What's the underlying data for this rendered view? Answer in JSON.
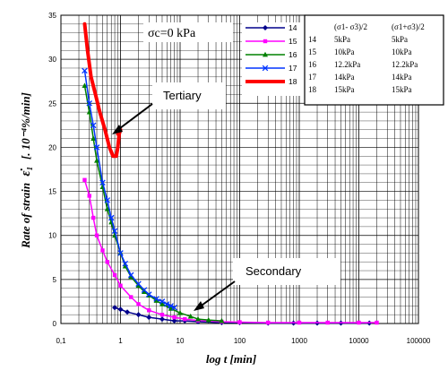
{
  "chart_data": {
    "type": "scatter",
    "xscale": "log",
    "xlim": [
      0.1,
      100000
    ],
    "ylim": [
      0,
      35
    ],
    "xlabel": "log t [min]",
    "ylabel_prefix": "Rate of strain",
    "ylabel_symbol": "ε̇₁",
    "ylabel_unit": "[. 10⁻⁴%/min]",
    "x_ticks": [
      "0,1",
      "1",
      "10",
      "100",
      "1000",
      "10000",
      "100000"
    ],
    "y_ticks": [
      "0",
      "5",
      "10",
      "15",
      "20",
      "25",
      "30",
      "35"
    ],
    "condition_label": "σc=0 kPa",
    "annotations": [
      {
        "text": "Tertiary"
      },
      {
        "text": "Secondary"
      }
    ],
    "series": [
      {
        "name": "14",
        "color": "#00008b",
        "marker": "diamond",
        "x": [
          0.8,
          1.0,
          1.3,
          2,
          3,
          5,
          8,
          12,
          20,
          50,
          100,
          300,
          800,
          2000,
          5000,
          15000
        ],
        "y": [
          1.8,
          1.6,
          1.3,
          1.0,
          0.7,
          0.5,
          0.3,
          0.3,
          0.2,
          0.1,
          0.1,
          0.05,
          0.05,
          0.05,
          0.05,
          0.05
        ]
      },
      {
        "name": "15",
        "color": "#ff00ff",
        "marker": "square",
        "x": [
          0.25,
          0.3,
          0.35,
          0.4,
          0.5,
          0.6,
          0.8,
          1.0,
          1.5,
          2,
          3,
          5,
          8,
          12,
          20,
          50,
          100,
          300,
          1000,
          3000,
          10000,
          20000
        ],
        "y": [
          16.3,
          14.5,
          12.0,
          10.0,
          8.3,
          7.0,
          5.5,
          4.3,
          3.0,
          2.2,
          1.5,
          1.0,
          0.7,
          0.5,
          0.35,
          0.2,
          0.15,
          0.1,
          0.1,
          0.1,
          0.1,
          0.1
        ]
      },
      {
        "name": "16",
        "color": "#008000",
        "marker": "triangle",
        "x": [
          0.25,
          0.3,
          0.35,
          0.4,
          0.5,
          0.6,
          0.7,
          0.8,
          1.0,
          1.2,
          1.5,
          2,
          2.5,
          3,
          4,
          5,
          7,
          10,
          15,
          20,
          30,
          50
        ],
        "y": [
          27.0,
          24.0,
          21.0,
          18.5,
          15.5,
          13.0,
          11.5,
          10.0,
          8.0,
          6.5,
          5.3,
          4.3,
          3.6,
          3.2,
          2.6,
          2.2,
          1.7,
          1.2,
          0.8,
          0.5,
          0.4,
          0.3
        ]
      },
      {
        "name": "17",
        "color": "#0033ff",
        "marker": "x",
        "x": [
          0.25,
          0.3,
          0.35,
          0.4,
          0.5,
          0.6,
          0.7,
          0.8,
          1.0,
          1.2,
          1.5,
          2,
          2.5,
          3,
          4,
          5,
          6,
          7,
          8
        ],
        "y": [
          28.7,
          25.0,
          22.5,
          20.0,
          16.0,
          14.0,
          12.0,
          10.5,
          8.0,
          6.8,
          5.5,
          4.5,
          3.8,
          3.3,
          2.8,
          2.5,
          2.2,
          2.0,
          1.8
        ]
      },
      {
        "name": "18",
        "color": "#ff0000",
        "marker": "none",
        "x": [
          0.25,
          0.28,
          0.32,
          0.38,
          0.45,
          0.55,
          0.65,
          0.75,
          0.85,
          0.9,
          0.95,
          1.0,
          0.95,
          0.9
        ],
        "y": [
          34.0,
          31.0,
          28.0,
          26.0,
          24.0,
          22.0,
          20.0,
          19.0,
          19.0,
          20.0,
          21.5,
          22.0,
          21.8,
          21.5
        ]
      }
    ]
  },
  "table": {
    "header": [
      "(σ1- σ3)/2",
      "(σ1+σ3)/2"
    ],
    "rows": [
      [
        "14",
        "5kPa",
        "5kPa"
      ],
      [
        "15",
        "10kPa",
        "10kPa"
      ],
      [
        "16",
        "12.2kPa",
        "12.2kPa"
      ],
      [
        "17",
        "14kPa",
        "14kPa"
      ],
      [
        "18",
        "15kPa",
        "15kPa"
      ]
    ]
  }
}
